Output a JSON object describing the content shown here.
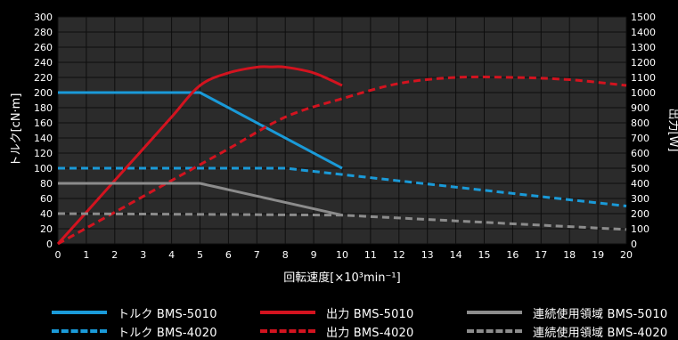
{
  "chart_data": {
    "type": "line",
    "xlabel": "回転速度[×10³min⁻¹]",
    "ylabel": "トルク[cN·m]",
    "y2label": "出力[W]",
    "xlim": [
      0,
      20
    ],
    "ylim": [
      0,
      300
    ],
    "y2lim": [
      0,
      1500
    ],
    "x_ticks": [
      "0",
      "1",
      "2",
      "3",
      "4",
      "5",
      "6",
      "7",
      "8",
      "9",
      "10",
      "11",
      "12",
      "13",
      "14",
      "15",
      "16",
      "17",
      "18",
      "19",
      "20"
    ],
    "y_ticks": [
      "0",
      "20",
      "40",
      "60",
      "80",
      "100",
      "120",
      "140",
      "160",
      "180",
      "200",
      "220",
      "240",
      "260",
      "280",
      "300"
    ],
    "y2_ticks": [
      "0",
      "100",
      "200",
      "300",
      "400",
      "500",
      "600",
      "700",
      "800",
      "900",
      "1000",
      "1100",
      "1200",
      "1300",
      "1400",
      "1500"
    ],
    "grid": true,
    "series": [
      {
        "name": "トルク BMS-5010",
        "axis": "left",
        "color": "#1a9ad8",
        "style": "solid",
        "x": [
          0,
          5,
          10
        ],
        "y": [
          200,
          200,
          100
        ]
      },
      {
        "name": "トルク BMS-4020",
        "axis": "left",
        "color": "#1a9ad8",
        "style": "dashed",
        "x": [
          0,
          8,
          20
        ],
        "y": [
          100,
          100,
          50
        ]
      },
      {
        "name": "出力 BMS-5010",
        "axis": "right",
        "color": "#d3131f",
        "style": "solid",
        "x": [
          0,
          1,
          2,
          3,
          4,
          5,
          6,
          7,
          7.5,
          8,
          9,
          10
        ],
        "y": [
          0,
          209,
          419,
          628,
          838,
          1047,
          1130,
          1168,
          1170,
          1168,
          1130,
          1047
        ]
      },
      {
        "name": "出力 BMS-4020",
        "axis": "right",
        "color": "#d3131f",
        "style": "dashed",
        "x": [
          0,
          2,
          4,
          6,
          8,
          10,
          12,
          14,
          16,
          18,
          20
        ],
        "y": [
          0,
          209,
          419,
          628,
          838,
          960,
          1060,
          1100,
          1100,
          1085,
          1047
        ]
      },
      {
        "name": "連続使用領域 BMS-5010",
        "axis": "left",
        "color": "#8c8c8c",
        "style": "solid",
        "x": [
          0,
          5,
          10
        ],
        "y": [
          80,
          80,
          38
        ]
      },
      {
        "name": "連続使用領域 BMS-4020",
        "axis": "left",
        "color": "#8c8c8c",
        "style": "dashed",
        "x": [
          0,
          10,
          20
        ],
        "y": [
          40,
          38,
          19
        ]
      }
    ]
  }
}
